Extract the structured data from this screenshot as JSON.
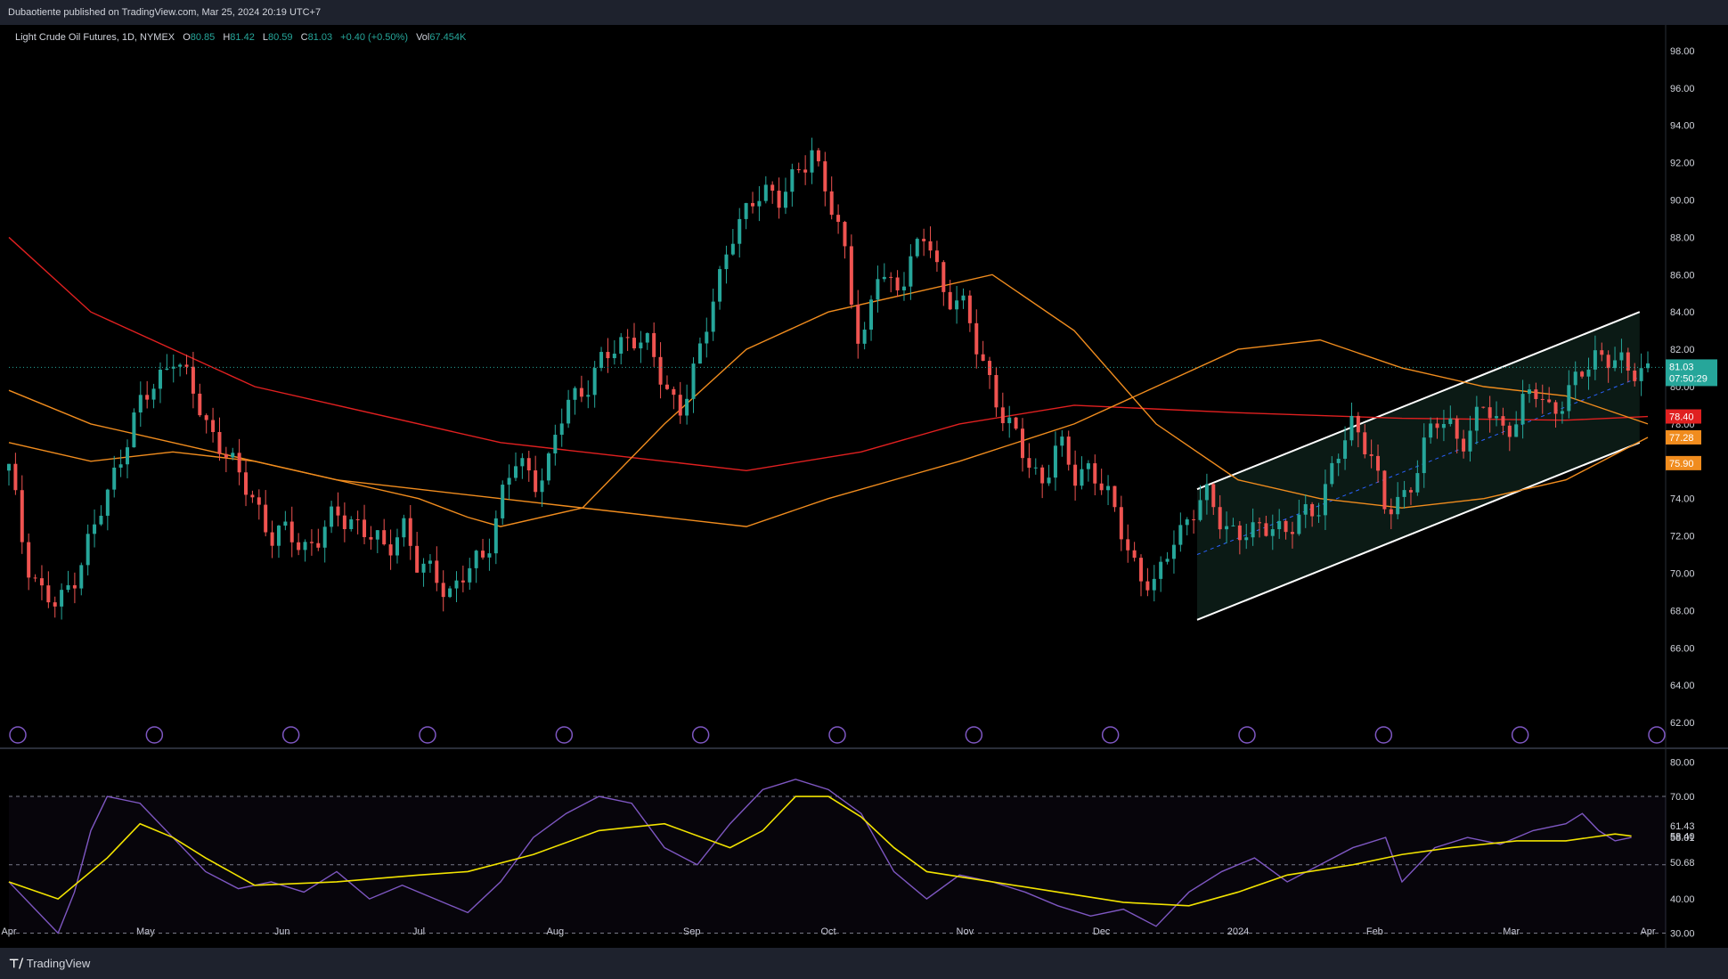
{
  "header": {
    "publisher_line": "Dubaotiente published on TradingView.com, Mar 25, 2024 20:19 UTC+7"
  },
  "legend": {
    "symbol": "Light Crude Oil Futures, 1D, NYMEX",
    "o_label": "O",
    "o": "80.85",
    "h_label": "H",
    "h": "81.42",
    "l_label": "L",
    "l": "80.59",
    "c_label": "C",
    "c": "81.03",
    "change": "+0.40 (+0.50%)",
    "vol_label": "Vol",
    "vol": "67.454K"
  },
  "footer": {
    "brand": "TradingView"
  },
  "colors": {
    "up": "#26a69a",
    "down": "#ef5350",
    "ma_red": "#e02020",
    "ma_orange": "#f08c1e",
    "rsi": "#7e57c2",
    "rsi_ma": "#f2e300",
    "channel_fill": "#0b1a15"
  },
  "chart_data": [
    {
      "type": "candlestick",
      "title": "Light Crude Oil Futures, 1D, NYMEX",
      "x_ticks": [
        "Apr",
        "May",
        "Jun",
        "Jul",
        "Aug",
        "Sep",
        "Oct",
        "Nov",
        "Dec",
        "2024",
        "Feb",
        "Mar",
        "Apr"
      ],
      "y_ticks": [
        "98.00",
        "96.00",
        "94.00",
        "92.00",
        "90.00",
        "88.00",
        "86.00",
        "84.00",
        "82.00",
        "80.00",
        "78.00",
        "76.00",
        "74.00",
        "72.00",
        "70.00",
        "68.00",
        "66.00",
        "64.00",
        "62.00"
      ],
      "ylim": [
        61,
        99
      ],
      "xlim": [
        0,
        100
      ],
      "price_path": [
        [
          0,
          75.5
        ],
        [
          1,
          71
        ],
        [
          2,
          69
        ],
        [
          3,
          68
        ],
        [
          4,
          70
        ],
        [
          6,
          74
        ],
        [
          7,
          77
        ],
        [
          8,
          79
        ],
        [
          9,
          80
        ],
        [
          10,
          82
        ],
        [
          11,
          80
        ],
        [
          12,
          78
        ],
        [
          13,
          77
        ],
        [
          14,
          75
        ],
        [
          15,
          74
        ],
        [
          16,
          72
        ],
        [
          17,
          72
        ],
        [
          18,
          71.5
        ],
        [
          19,
          72
        ],
        [
          20,
          73
        ],
        [
          21,
          73
        ],
        [
          22,
          72
        ],
        [
          23,
          71
        ],
        [
          24,
          73
        ],
        [
          25,
          70
        ],
        [
          26,
          70
        ],
        [
          27,
          69
        ],
        [
          28,
          70
        ],
        [
          29,
          71
        ],
        [
          30,
          74
        ],
        [
          31,
          76
        ],
        [
          32,
          75
        ],
        [
          33,
          76
        ],
        [
          34,
          79
        ],
        [
          35,
          80
        ],
        [
          36,
          81
        ],
        [
          37,
          82
        ],
        [
          38,
          83
        ],
        [
          39,
          82
        ],
        [
          40,
          80
        ],
        [
          41,
          79
        ],
        [
          42,
          81
        ],
        [
          43,
          85
        ],
        [
          44,
          88
        ],
        [
          45,
          89
        ],
        [
          46,
          91
        ],
        [
          47,
          90
        ],
        [
          48,
          91
        ],
        [
          49,
          93
        ],
        [
          50,
          90
        ],
        [
          51,
          87
        ],
        [
          52,
          82
        ],
        [
          53,
          86
        ],
        [
          54,
          85
        ],
        [
          55,
          87
        ],
        [
          56,
          88
        ],
        [
          57,
          85
        ],
        [
          58,
          85
        ],
        [
          59,
          82
        ],
        [
          60,
          80
        ],
        [
          61,
          78
        ],
        [
          62,
          76
        ],
        [
          63,
          75
        ],
        [
          64,
          77
        ],
        [
          65,
          75
        ],
        [
          66,
          76
        ],
        [
          67,
          74
        ],
        [
          68,
          72
        ],
        [
          69,
          70
        ],
        [
          70,
          69
        ],
        [
          71,
          72
        ],
        [
          72,
          73
        ],
        [
          73,
          74
        ],
        [
          74,
          73
        ],
        [
          75,
          72
        ],
        [
          76,
          72
        ],
        [
          77,
          73
        ],
        [
          78,
          72
        ],
        [
          79,
          73
        ],
        [
          80,
          74
        ],
        [
          81,
          76
        ],
        [
          82,
          78
        ],
        [
          83,
          77
        ],
        [
          84,
          73
        ],
        [
          85,
          74
        ],
        [
          86,
          76
        ],
        [
          87,
          78
        ],
        [
          88,
          78
        ],
        [
          89,
          77
        ],
        [
          90,
          79
        ],
        [
          91,
          78
        ],
        [
          92,
          78
        ],
        [
          93,
          80
        ],
        [
          94,
          79
        ],
        [
          95,
          79
        ],
        [
          96,
          81
        ],
        [
          97,
          82
        ],
        [
          98,
          81
        ],
        [
          99,
          81.03
        ]
      ],
      "last_price": 81.03,
      "countdown": "07:50:29",
      "ma_labels": [
        "78.40",
        "77.28",
        "75.90"
      ],
      "ma_series": [
        {
          "color": "#e02020",
          "points": [
            [
              0,
              88
            ],
            [
              5,
              84
            ],
            [
              10,
              82
            ],
            [
              15,
              80
            ],
            [
              20,
              79
            ],
            [
              30,
              77
            ],
            [
              40,
              76
            ],
            [
              45,
              75.5
            ],
            [
              52,
              76.5
            ],
            [
              58,
              78
            ],
            [
              65,
              79
            ],
            [
              75,
              78.6
            ],
            [
              85,
              78.3
            ],
            [
              95,
              78.2
            ],
            [
              100,
              78.4
            ]
          ]
        },
        {
          "color": "#f08c1e",
          "points": [
            [
              0,
              79.8
            ],
            [
              5,
              78
            ],
            [
              10,
              77
            ],
            [
              20,
              75
            ],
            [
              25,
              74.5
            ],
            [
              30,
              74
            ],
            [
              40,
              73
            ],
            [
              45,
              72.5
            ],
            [
              50,
              74
            ],
            [
              58,
              76
            ],
            [
              65,
              78
            ],
            [
              70,
              80
            ],
            [
              75,
              82
            ],
            [
              80,
              82.5
            ],
            [
              85,
              81
            ],
            [
              90,
              80
            ],
            [
              95,
              79.5
            ],
            [
              100,
              78
            ]
          ]
        },
        {
          "color": "#f08c1e",
          "points": [
            [
              0,
              77
            ],
            [
              5,
              76
            ],
            [
              10,
              76.5
            ],
            [
              15,
              76
            ],
            [
              20,
              75
            ],
            [
              25,
              74
            ],
            [
              28,
              73
            ],
            [
              30,
              72.5
            ],
            [
              35,
              73.5
            ],
            [
              40,
              78
            ],
            [
              45,
              82
            ],
            [
              50,
              84
            ],
            [
              55,
              85
            ],
            [
              60,
              86
            ],
            [
              65,
              83
            ],
            [
              70,
              78
            ],
            [
              75,
              75
            ],
            [
              80,
              74
            ],
            [
              85,
              73.5
            ],
            [
              90,
              74
            ],
            [
              95,
              75
            ],
            [
              100,
              77.28
            ]
          ]
        }
      ],
      "channel": {
        "upper": [
          [
            72.5,
            74.5
          ],
          [
            99.5,
            84
          ]
        ],
        "lower": [
          [
            72.5,
            67.5
          ],
          [
            99.5,
            77
          ]
        ],
        "mid": [
          [
            72.5,
            71
          ],
          [
            99.5,
            80.5
          ]
        ]
      }
    },
    {
      "type": "line",
      "title": "",
      "y_ticks": [
        "80.00",
        "70.00",
        "61.43",
        "58.40",
        "58.01",
        "50.68",
        "40.00",
        "30.00"
      ],
      "ylim": [
        27,
        82
      ],
      "bands": [
        70,
        50,
        30
      ],
      "series": [
        {
          "values": [
            [
              0,
              45
            ],
            [
              3,
              30
            ],
            [
              4,
              42
            ],
            [
              5,
              60
            ],
            [
              6,
              70
            ],
            [
              8,
              68
            ],
            [
              10,
              58
            ],
            [
              12,
              48
            ],
            [
              14,
              43
            ],
            [
              16,
              45
            ],
            [
              18,
              42
            ],
            [
              20,
              48
            ],
            [
              22,
              40
            ],
            [
              24,
              44
            ],
            [
              26,
              40
            ],
            [
              28,
              36
            ],
            [
              30,
              45
            ],
            [
              32,
              58
            ],
            [
              34,
              65
            ],
            [
              36,
              70
            ],
            [
              38,
              68
            ],
            [
              40,
              55
            ],
            [
              42,
              50
            ],
            [
              44,
              62
            ],
            [
              46,
              72
            ],
            [
              48,
              75
            ],
            [
              50,
              72
            ],
            [
              52,
              65
            ],
            [
              54,
              48
            ],
            [
              56,
              40
            ],
            [
              58,
              47
            ],
            [
              60,
              45
            ],
            [
              62,
              42
            ],
            [
              64,
              38
            ],
            [
              66,
              35
            ],
            [
              68,
              37
            ],
            [
              70,
              32
            ],
            [
              72,
              42
            ],
            [
              74,
              48
            ],
            [
              76,
              52
            ],
            [
              78,
              45
            ],
            [
              80,
              50
            ],
            [
              82,
              55
            ],
            [
              84,
              58
            ],
            [
              85,
              45
            ],
            [
              87,
              55
            ],
            [
              89,
              58
            ],
            [
              91,
              56
            ],
            [
              93,
              60
            ],
            [
              95,
              62
            ],
            [
              96,
              65
            ],
            [
              97,
              60
            ],
            [
              98,
              57
            ],
            [
              99,
              58.01
            ]
          ]
        },
        {
          "values": [
            [
              0,
              45
            ],
            [
              3,
              40
            ],
            [
              6,
              52
            ],
            [
              8,
              62
            ],
            [
              10,
              58
            ],
            [
              12,
              52
            ],
            [
              15,
              44
            ],
            [
              20,
              45
            ],
            [
              25,
              47
            ],
            [
              28,
              48
            ],
            [
              32,
              53
            ],
            [
              36,
              60
            ],
            [
              40,
              62
            ],
            [
              44,
              55
            ],
            [
              46,
              60
            ],
            [
              48,
              70
            ],
            [
              50,
              70
            ],
            [
              52,
              64
            ],
            [
              54,
              55
            ],
            [
              56,
              48
            ],
            [
              60,
              45
            ],
            [
              64,
              42
            ],
            [
              68,
              39
            ],
            [
              72,
              38
            ],
            [
              75,
              42
            ],
            [
              78,
              47
            ],
            [
              82,
              50
            ],
            [
              85,
              53
            ],
            [
              88,
              55
            ],
            [
              92,
              57
            ],
            [
              95,
              57
            ],
            [
              98,
              59
            ],
            [
              99,
              58.4
            ]
          ]
        }
      ]
    }
  ]
}
